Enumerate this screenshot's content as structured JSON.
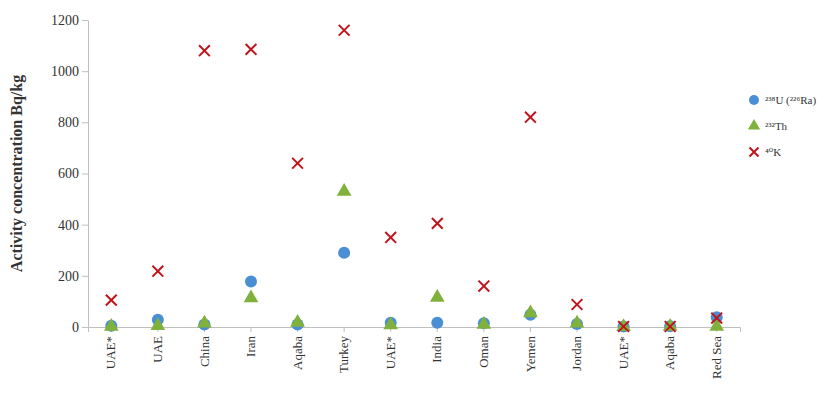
{
  "chart_data": {
    "type": "scatter",
    "y_label": "Activity concentration Bq/kg",
    "categories": [
      "UAE*",
      "UAE",
      "China",
      "Iran",
      "Aqaba",
      "Turkey",
      "UAE*",
      "India",
      "Oman",
      "Yemen",
      "Jordan",
      "UAE*",
      "Aqaba",
      "Red Sea"
    ],
    "series": [
      {
        "name": "²³⁸U (²²⁶Ra)",
        "color": "#4a8fd4",
        "marker": "circle",
        "values": [
          5,
          28,
          10,
          178,
          10,
          290,
          17,
          17,
          15,
          48,
          12,
          2,
          3,
          38
        ]
      },
      {
        "name": "²³²Th",
        "color": "#7fb13c",
        "marker": "triangle",
        "values": [
          2,
          5,
          15,
          113,
          18,
          530,
          8,
          115,
          10,
          55,
          15,
          1,
          2,
          2
        ]
      },
      {
        "name": "⁴⁰K",
        "color": "#c0141c",
        "marker": "x",
        "values": [
          105,
          218,
          1080,
          1085,
          640,
          1160,
          350,
          405,
          160,
          820,
          88,
          2,
          2,
          35
        ]
      }
    ],
    "ylim": [
      0,
      1200
    ],
    "yticks": [
      0,
      200,
      400,
      600,
      800,
      1000,
      1200
    ],
    "grid": false,
    "legend": "right"
  }
}
